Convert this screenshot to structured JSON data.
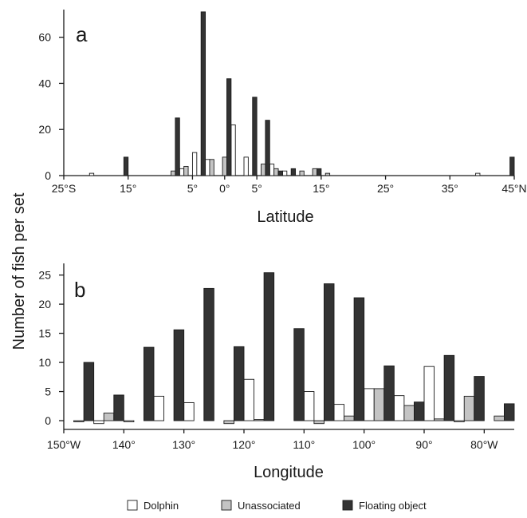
{
  "colors": {
    "dolphin": "#ffffff",
    "unassociated": "#c4c4c4",
    "floating": "#333333",
    "axis": "#1a1a1a"
  },
  "ylabel": "Number of fish per set",
  "legend": {
    "position": "bottom-center",
    "items": [
      {
        "key": "dolphin",
        "label": "Dolphin"
      },
      {
        "key": "unassociated",
        "label": "Unassociated"
      },
      {
        "key": "floating",
        "label": "Floating object"
      }
    ]
  },
  "chart_data": [
    {
      "type": "bar",
      "panel_label": "a",
      "xlabel": "Latitude",
      "ylabel": "Number of fish per set",
      "ylim": [
        0,
        72
      ],
      "yticks": [
        0,
        20,
        40,
        60
      ],
      "ytick_labels": [
        "0",
        "20",
        "40",
        "60"
      ],
      "xticks": [
        {
          "label": "25°S",
          "bin": -0.5
        },
        {
          "label": "15°",
          "bin": 4.5
        },
        {
          "label": "5°",
          "bin": 9.5
        },
        {
          "label": "0°",
          "bin": 12
        },
        {
          "label": "5°",
          "bin": 14.5
        },
        {
          "label": "15°",
          "bin": 19.5
        },
        {
          "label": "25°",
          "bin": 24.5
        },
        {
          "label": "35°",
          "bin": 29.5
        },
        {
          "label": "45°N",
          "bin": 34.5
        }
      ],
      "n_bins": 35,
      "series": [
        {
          "key": "dolphin",
          "bins": [
            2,
            9,
            10,
            11,
            13,
            14,
            16,
            17,
            32
          ],
          "values": [
            1,
            3,
            10,
            7,
            22,
            8,
            5,
            2,
            1
          ]
        },
        {
          "key": "unassociated",
          "bins": [
            8,
            9,
            11,
            12,
            15,
            16,
            18,
            19,
            20
          ],
          "values": [
            2,
            4,
            7,
            8,
            5,
            3,
            2,
            3,
            1
          ]
        },
        {
          "key": "floating",
          "bins": [
            4,
            8,
            10,
            12,
            14,
            15,
            16,
            17,
            19,
            34
          ],
          "values": [
            8,
            25,
            71,
            42,
            34,
            24,
            2,
            3,
            3,
            8
          ]
        }
      ]
    },
    {
      "type": "bar",
      "panel_label": "b",
      "xlabel": "Longitude",
      "ylabel": "Number of fish per set",
      "ylim": [
        -1.5,
        27
      ],
      "yticks": [
        0,
        5,
        10,
        15,
        20,
        25
      ],
      "ytick_labels": [
        "0",
        "5",
        "10",
        "15",
        "20",
        "25"
      ],
      "xticks": [
        {
          "label": "150°W",
          "bin": -0.5
        },
        {
          "label": "140°",
          "bin": 1.5
        },
        {
          "label": "130°",
          "bin": 3.5
        },
        {
          "label": "120°",
          "bin": 5.5
        },
        {
          "label": "110°",
          "bin": 7.5
        },
        {
          "label": "100°",
          "bin": 9.5
        },
        {
          "label": "90°",
          "bin": 11.5
        },
        {
          "label": "80°W",
          "bin": 13.5
        }
      ],
      "n_bins": 15,
      "series": [
        {
          "key": "dolphin",
          "bins": [
            0,
            1,
            2,
            3,
            4,
            5,
            6,
            7,
            8,
            9,
            10,
            11,
            12,
            13,
            14
          ],
          "values": [
            null,
            -0.5,
            -0.2,
            4.2,
            3.1,
            null,
            7.1,
            null,
            5.0,
            2.8,
            5.5,
            4.3,
            9.3,
            -0.2,
            null
          ]
        },
        {
          "key": "unassociated",
          "bins": [
            0,
            1,
            2,
            3,
            4,
            5,
            6,
            7,
            8,
            9,
            10,
            11,
            12,
            13,
            14
          ],
          "values": [
            -0.2,
            1.3,
            null,
            null,
            null,
            -0.5,
            0.2,
            null,
            -0.5,
            0.8,
            5.5,
            2.6,
            0.3,
            4.2,
            0.8
          ]
        },
        {
          "key": "floating",
          "bins": [
            0,
            1,
            2,
            3,
            4,
            5,
            6,
            7,
            8,
            9,
            10,
            11,
            12,
            13,
            14
          ],
          "values": [
            10.0,
            4.4,
            12.6,
            15.6,
            22.7,
            12.7,
            25.4,
            15.8,
            23.5,
            21.1,
            9.4,
            3.2,
            11.2,
            7.6,
            2.9
          ]
        }
      ]
    }
  ]
}
